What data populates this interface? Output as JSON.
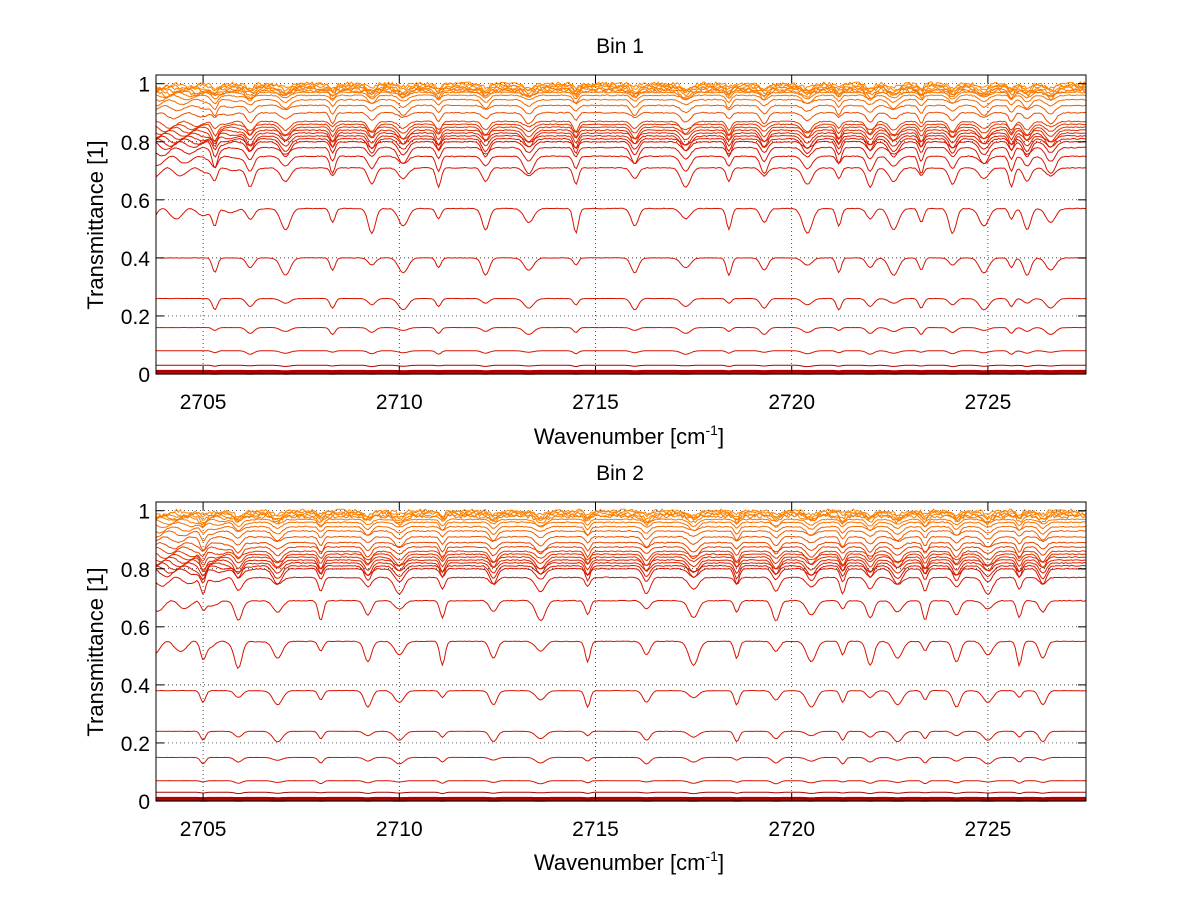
{
  "chart_data": [
    {
      "type": "line",
      "title": "Bin 1",
      "xlabel": "Wavenumber [cm",
      "xlabel_sup": "-1",
      "xlabel_end": "]",
      "ylabel": "Transmittance [1]",
      "xlim": [
        2703.8,
        2727.5
      ],
      "ylim": [
        0,
        1.03
      ],
      "xticks": [
        2705,
        2710,
        2715,
        2720,
        2725
      ],
      "xtick_labels": [
        "2705",
        "2710",
        "2715",
        "2720",
        "2725"
      ],
      "yticks": [
        0,
        0.2,
        0.4,
        0.6,
        0.8,
        1
      ],
      "ytick_labels": [
        "0",
        "0.2",
        "0.4",
        "0.6",
        "0.8",
        "1"
      ],
      "grid": "dotted",
      "series_levels": [
        1.0,
        0.995,
        0.99,
        0.985,
        0.98,
        0.975,
        0.97,
        0.96,
        0.945,
        0.925,
        0.9,
        0.87,
        0.86,
        0.85,
        0.84,
        0.83,
        0.82,
        0.81,
        0.8,
        0.78,
        0.75,
        0.71,
        0.57,
        0.4,
        0.26,
        0.16,
        0.08,
        0.03,
        0.01,
        0.002
      ],
      "absorption_lines": [
        2705.3,
        2706.2,
        2707.1,
        2708.3,
        2709.3,
        2710.1,
        2711.0,
        2712.2,
        2713.3,
        2714.5,
        2716.0,
        2717.3,
        2718.4,
        2719.3,
        2720.4,
        2721.2,
        2722.0,
        2722.6,
        2723.3,
        2724.1,
        2724.9,
        2725.6,
        2726.0,
        2726.6
      ]
    },
    {
      "type": "line",
      "title": "Bin 2",
      "xlabel": "Wavenumber [cm",
      "xlabel_sup": "-1",
      "xlabel_end": "]",
      "ylabel": "Transmittance [1]",
      "xlim": [
        2703.8,
        2727.5
      ],
      "ylim": [
        0,
        1.03
      ],
      "xticks": [
        2705,
        2710,
        2715,
        2720,
        2725
      ],
      "xtick_labels": [
        "2705",
        "2710",
        "2715",
        "2720",
        "2725"
      ],
      "yticks": [
        0,
        0.2,
        0.4,
        0.6,
        0.8,
        1
      ],
      "ytick_labels": [
        "0",
        "0.2",
        "0.4",
        "0.6",
        "0.8",
        "1"
      ],
      "grid": "dotted",
      "series_levels": [
        1.0,
        0.995,
        0.99,
        0.985,
        0.98,
        0.97,
        0.96,
        0.945,
        0.93,
        0.91,
        0.89,
        0.875,
        0.86,
        0.85,
        0.84,
        0.83,
        0.82,
        0.81,
        0.8,
        0.77,
        0.69,
        0.55,
        0.38,
        0.24,
        0.15,
        0.07,
        0.03,
        0.01,
        0.002
      ],
      "absorption_lines": [
        2705.0,
        2705.9,
        2706.9,
        2708.0,
        2709.2,
        2710.0,
        2711.1,
        2712.4,
        2713.6,
        2714.8,
        2716.3,
        2717.5,
        2718.6,
        2719.6,
        2720.5,
        2721.3,
        2722.0,
        2722.7,
        2723.4,
        2724.2,
        2725.0,
        2725.8,
        2726.4
      ]
    }
  ]
}
